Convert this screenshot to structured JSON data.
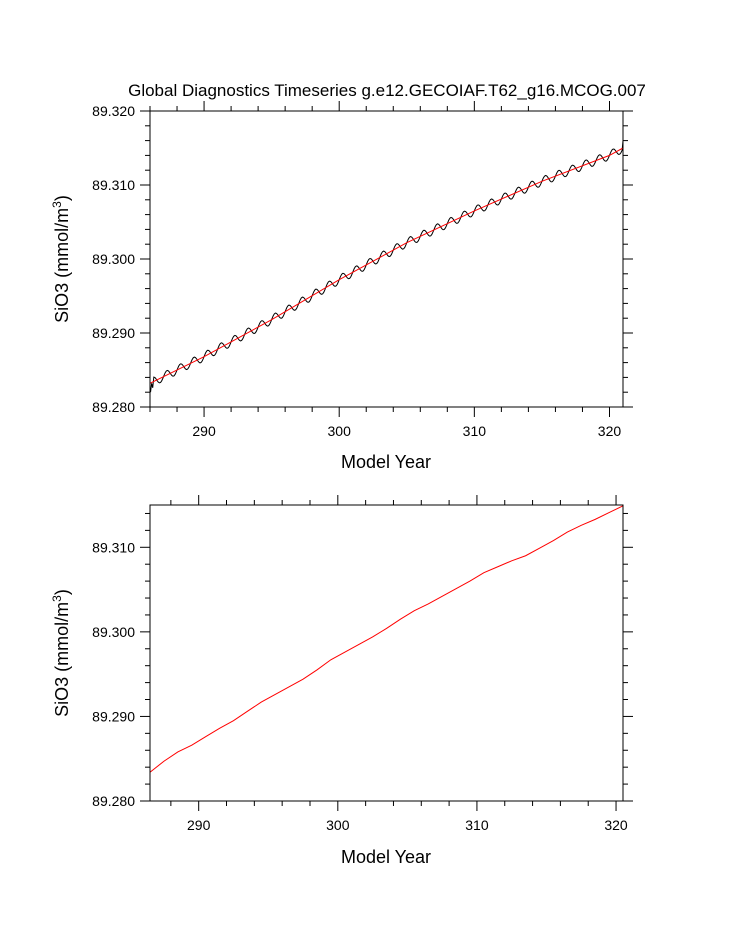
{
  "chart_data": [
    {
      "type": "line",
      "title": "Global Diagnostics Timeseries g.e12.GECOIAF.T62_g16.MCOG.007",
      "xlabel": "Model Year",
      "ylabel": "SiO3 (mmol/m",
      "ylabel_sup": "3",
      "ylabel_end": ")",
      "xlim": [
        286,
        321
      ],
      "ylim": [
        89.28,
        89.32
      ],
      "xticks": [
        290,
        300,
        310,
        320
      ],
      "yticks": [
        89.28,
        89.29,
        89.3,
        89.31,
        89.32
      ],
      "ytick_labels": [
        "89.280",
        "89.290",
        "89.300",
        "89.310",
        "89.320"
      ],
      "series": [
        {
          "style": "monthly",
          "color": "#000000",
          "start": 286.04,
          "end": 321.0,
          "step": 0.0833,
          "trend_x": [
            286.0,
            290.0,
            295.0,
            300.0,
            305.0,
            310.0,
            315.0,
            320.0,
            321.0
          ],
          "trend_y": [
            89.2832,
            89.2868,
            89.2918,
            89.2972,
            89.3022,
            89.3065,
            89.3105,
            89.314,
            89.315
          ],
          "seasonal_amplitude": 0.0006,
          "start_values": [
            [
              286.04,
              89.282
            ],
            [
              286.12,
              89.2832
            ],
            [
              286.2,
              89.2826
            ]
          ],
          "end_value": [
            321.0,
            89.316
          ]
        },
        {
          "style": "annual",
          "color": "#ff0000",
          "x": [
            286.0,
            290.0,
            295.0,
            300.0,
            305.0,
            310.0,
            315.0,
            320.0,
            321.0
          ],
          "y": [
            89.2832,
            89.2868,
            89.2918,
            89.2972,
            89.3022,
            89.3065,
            89.3105,
            89.314,
            89.315
          ]
        }
      ]
    },
    {
      "type": "line",
      "title": "",
      "xlabel": "Model Year",
      "ylabel": "SiO3 (mmol/m",
      "ylabel_sup": "3",
      "ylabel_end": ")",
      "xlim": [
        286.5,
        320.5
      ],
      "ylim": [
        89.28,
        89.315
      ],
      "xticks": [
        290,
        300,
        310,
        320
      ],
      "yticks": [
        89.28,
        89.29,
        89.3,
        89.31
      ],
      "ytick_labels": [
        "89.280",
        "89.290",
        "89.300",
        "89.310"
      ],
      "series": [
        {
          "style": "annual",
          "color": "#ff0000",
          "x": [
            286.5,
            287.5,
            288.5,
            289.5,
            290.5,
            291.5,
            292.5,
            293.5,
            294.5,
            295.5,
            296.5,
            297.5,
            298.5,
            299.5,
            300.5,
            301.5,
            302.5,
            303.5,
            304.5,
            305.5,
            306.5,
            307.5,
            308.5,
            309.5,
            310.5,
            311.5,
            312.5,
            313.5,
            314.5,
            315.5,
            316.5,
            317.5,
            318.5,
            319.5,
            320.5
          ],
          "y": [
            89.2834,
            89.2847,
            89.2858,
            89.2866,
            89.2876,
            89.2886,
            89.2895,
            89.2906,
            89.2917,
            89.2926,
            89.2935,
            89.2944,
            89.2955,
            89.2967,
            89.2976,
            89.2985,
            89.2994,
            89.3004,
            89.3015,
            89.3025,
            89.3033,
            89.3042,
            89.3051,
            89.306,
            89.307,
            89.3077,
            89.3084,
            89.309,
            89.3099,
            89.3108,
            89.3118,
            89.3126,
            89.3133,
            89.3141,
            89.3149
          ]
        }
      ]
    }
  ]
}
